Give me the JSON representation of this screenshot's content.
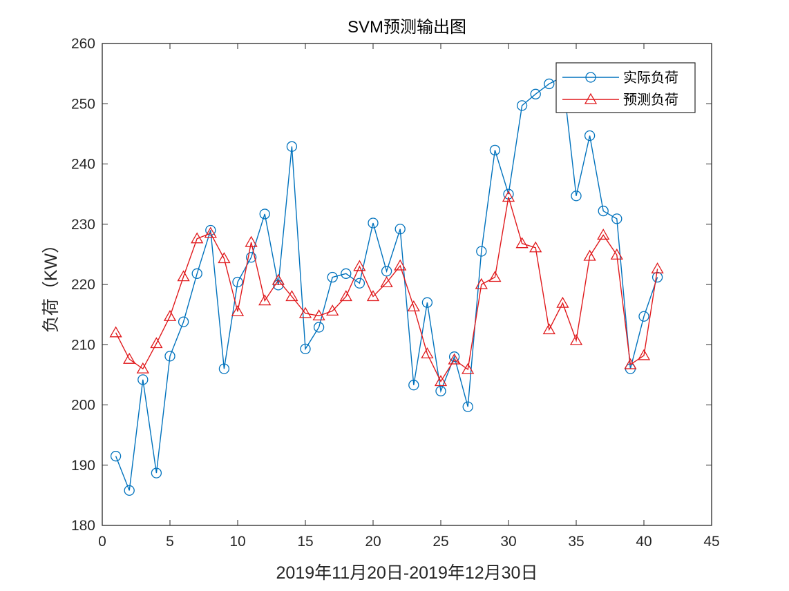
{
  "chart_data": {
    "type": "line",
    "title": "SVM预测输出图",
    "xlabel": "2019年11月20日-2019年12月30日",
    "ylabel": "负荷（KW）",
    "xlim": [
      0,
      45
    ],
    "ylim": [
      180,
      260
    ],
    "xticks": [
      0,
      5,
      10,
      15,
      20,
      25,
      30,
      35,
      40,
      45
    ],
    "yticks": [
      180,
      190,
      200,
      210,
      220,
      230,
      240,
      250,
      260
    ],
    "grid": false,
    "legend_position": "top-right",
    "x": [
      1,
      2,
      3,
      4,
      5,
      6,
      7,
      8,
      9,
      10,
      11,
      12,
      13,
      14,
      15,
      16,
      17,
      18,
      19,
      20,
      21,
      22,
      23,
      24,
      25,
      26,
      27,
      28,
      29,
      30,
      31,
      32,
      33,
      34,
      35,
      36,
      37,
      38,
      39,
      40,
      41
    ],
    "series": [
      {
        "name": "实际负荷",
        "color": "#0072BD",
        "marker": "circle",
        "values": [
          191.5,
          185.8,
          204.2,
          188.7,
          208.1,
          213.8,
          221.8,
          229.0,
          206.0,
          220.4,
          224.5,
          231.7,
          219.9,
          242.9,
          209.3,
          212.9,
          221.2,
          221.8,
          220.2,
          230.2,
          222.2,
          229.2,
          203.3,
          217.0,
          202.3,
          208.0,
          199.7,
          225.5,
          242.3,
          235.0,
          249.7,
          251.6,
          253.3,
          254.5,
          234.7,
          244.7,
          232.2,
          230.9,
          206.0,
          214.7,
          221.2
        ]
      },
      {
        "name": "预测负荷",
        "color": "#E0191C",
        "marker": "triangle",
        "values": [
          212.0,
          207.6,
          206.0,
          210.2,
          214.7,
          221.3,
          227.6,
          228.5,
          224.3,
          215.5,
          227.0,
          217.3,
          220.7,
          218.0,
          215.2,
          214.8,
          215.6,
          218.0,
          223.0,
          218.0,
          220.3,
          223.1,
          216.3,
          208.5,
          203.9,
          207.5,
          205.9,
          220.0,
          221.2,
          234.5,
          226.8,
          226.1,
          212.5,
          216.9,
          210.7,
          224.7,
          228.2,
          224.9,
          206.7,
          208.2,
          222.6
        ]
      }
    ]
  }
}
